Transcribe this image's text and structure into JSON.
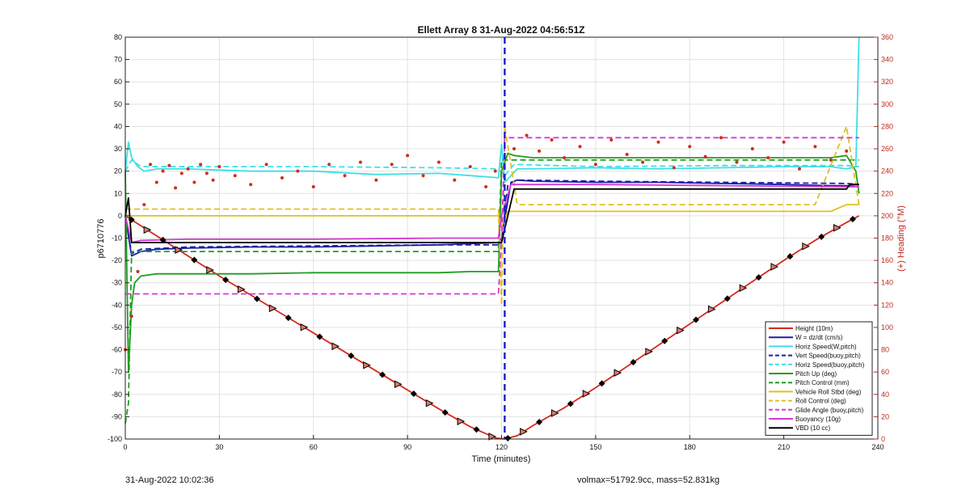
{
  "chart_data": {
    "type": "line",
    "title": "Ellett Array 8 31-Aug-2022 04:56:51Z",
    "xlabel": "Time (minutes)",
    "ylabel": "p6710776",
    "ylabel_right": "(+) Heading (°M)",
    "xlim": [
      0,
      240
    ],
    "ylim": [
      -100,
      80
    ],
    "ylim_right": [
      0,
      360
    ],
    "x_ticks": [
      0,
      30,
      60,
      90,
      120,
      150,
      180,
      210,
      240
    ],
    "y_ticks": [
      -100,
      -90,
      -80,
      -70,
      -60,
      -50,
      -40,
      -30,
      -20,
      -10,
      0,
      10,
      20,
      30,
      40,
      50,
      60,
      70,
      80
    ],
    "y_ticks_right": [
      0,
      20,
      40,
      60,
      80,
      100,
      120,
      140,
      160,
      180,
      200,
      220,
      240,
      260,
      280,
      300,
      320,
      340,
      360
    ],
    "grid": true,
    "legend_position": "bottom-right",
    "apogee_marker_x": 121,
    "series": [
      {
        "name": "Height (10m)",
        "color": "#d42a1c",
        "style": "solid",
        "x": [
          0,
          10,
          20,
          30,
          40,
          50,
          60,
          70,
          80,
          90,
          100,
          110,
          118,
          121,
          125,
          130,
          140,
          150,
          160,
          170,
          180,
          190,
          200,
          210,
          220,
          230,
          234
        ],
        "y": [
          0,
          -9,
          -18,
          -27,
          -35.5,
          -44,
          -52.5,
          -61,
          -69.5,
          -78,
          -86.5,
          -94.5,
          -99.5,
          -100,
          -98.5,
          -94,
          -86,
          -77,
          -67.5,
          -58,
          -48.5,
          -39,
          -29.5,
          -20,
          -11,
          -3,
          0
        ]
      },
      {
        "name": "W = dz/dt (cm/s)",
        "color": "#1b1fa8",
        "style": "solid",
        "x": [
          0,
          2,
          5,
          10,
          20,
          40,
          60,
          80,
          100,
          110,
          119,
          120,
          123,
          125,
          130,
          150,
          170,
          190,
          210,
          225,
          230,
          234
        ],
        "y": [
          0,
          -18,
          -16,
          -15,
          -14.5,
          -14,
          -14,
          -13.5,
          -13,
          -12.5,
          -12,
          -10,
          15,
          16,
          15.5,
          15,
          15,
          14.5,
          14,
          13.5,
          13.5,
          13
        ]
      },
      {
        "name": "Horiz Speed(W,pitch)",
        "color": "#3de0e6",
        "style": "solid",
        "x": [
          0,
          1,
          2,
          4,
          6,
          10,
          20,
          40,
          60,
          80,
          100,
          110,
          119,
          120,
          121,
          123,
          125,
          130,
          150,
          170,
          190,
          210,
          225,
          230,
          233,
          234
        ],
        "y": [
          20,
          33,
          26,
          22,
          20,
          21,
          21,
          20,
          20,
          18.5,
          19,
          18,
          17,
          32,
          15,
          18,
          21,
          21,
          21.5,
          21,
          21.5,
          22,
          22,
          21,
          22,
          80
        ]
      },
      {
        "name": "Vert Speed(buoy,pitch)",
        "color": "#1b1fa8",
        "style": "dashed",
        "x": [
          0,
          2,
          5,
          20,
          60,
          100,
          119,
          120,
          122,
          125,
          150,
          190,
          230,
          234
        ],
        "y": [
          0,
          -17,
          -15,
          -14,
          -13.5,
          -13,
          -13,
          -12,
          14,
          16,
          15.5,
          15,
          14.5,
          14
        ]
      },
      {
        "name": "Horiz Speed(buoy,pitch)",
        "color": "#3de0e6",
        "style": "dashed",
        "x": [
          0,
          2,
          5,
          20,
          60,
          100,
          119,
          121,
          124,
          150,
          190,
          230,
          234
        ],
        "y": [
          20,
          25,
          22,
          22,
          22,
          21.5,
          21,
          18,
          23,
          22,
          22.5,
          22.5,
          22
        ]
      },
      {
        "name": "Pitch Up (deg)",
        "color": "#1f9e1f",
        "style": "solid",
        "x": [
          0,
          1,
          2,
          3,
          5,
          10,
          20,
          40,
          60,
          80,
          100,
          110,
          119,
          120,
          122,
          124,
          130,
          150,
          170,
          190,
          210,
          225,
          230,
          233,
          234
        ],
        "y": [
          20,
          -70,
          -40,
          -30,
          -27,
          -26,
          -26,
          -26,
          -25.5,
          -25.5,
          -25.5,
          -25,
          -25,
          20,
          28,
          27,
          26,
          26,
          26,
          26,
          26,
          26,
          27,
          20,
          10
        ]
      },
      {
        "name": "Pitch Control (mm)",
        "color": "#1f9e1f",
        "style": "dashed",
        "x": [
          0,
          1,
          2,
          4,
          119,
          120,
          121,
          234
        ],
        "y": [
          -93,
          -84,
          -16,
          -16,
          -16,
          25,
          25,
          25
        ]
      },
      {
        "name": "Vehicle Roll Stbd (deg)",
        "color": "#e0c020",
        "style": "solid",
        "x": [
          0,
          5,
          10,
          20,
          40,
          60,
          80,
          100,
          119,
          120,
          122,
          124,
          130,
          150,
          170,
          190,
          210,
          225,
          230,
          234
        ],
        "y": [
          0,
          0,
          0,
          0,
          0,
          0,
          0,
          0,
          0,
          -5,
          2,
          2,
          2,
          2,
          2,
          2,
          2,
          2,
          5,
          5
        ]
      },
      {
        "name": "Roll Control (deg)",
        "color": "#e0c020",
        "style": "dashed",
        "x": [
          0,
          5,
          10,
          20,
          40,
          60,
          80,
          100,
          119,
          120,
          121,
          125,
          130,
          150,
          170,
          190,
          210,
          220,
          230,
          234
        ],
        "y": [
          3,
          3,
          3,
          3,
          3,
          3,
          3,
          3,
          3,
          -40,
          40,
          5,
          5,
          5,
          5,
          5,
          5,
          5,
          40,
          5
        ]
      },
      {
        "name": "Glide Angle (buoy,pitch)",
        "color": "#d43ad4",
        "style": "dashed",
        "x": [
          0,
          3,
          10,
          40,
          80,
          119,
          120,
          121,
          125,
          160,
          200,
          234
        ],
        "y": [
          -35,
          -35,
          -35,
          -35,
          -35,
          -35,
          -10,
          35,
          35,
          35,
          35,
          35
        ]
      },
      {
        "name": "Buoyancy (10g)",
        "color": "#d43ad4",
        "style": "solid",
        "x": [
          0,
          2,
          5,
          20,
          60,
          100,
          119,
          120,
          123,
          150,
          190,
          230,
          234
        ],
        "y": [
          0,
          -12,
          -11,
          -10.5,
          -10.5,
          -10,
          -10,
          0,
          14,
          14,
          13.5,
          13,
          13
        ]
      },
      {
        "name": "VBD (10 cc)",
        "color": "#000000",
        "style": "solid",
        "x": [
          0,
          1,
          2,
          119,
          120,
          124,
          230,
          231,
          234
        ],
        "y": [
          0,
          8,
          -12,
          -12,
          -12,
          12,
          12,
          14,
          14
        ]
      }
    ],
    "heading_scatter": {
      "name": "Heading",
      "color": "#d42a1c",
      "axis": "right",
      "x": [
        0,
        2,
        4,
        6,
        8,
        10,
        12,
        14,
        16,
        18,
        20,
        22,
        24,
        26,
        28,
        30,
        35,
        40,
        45,
        50,
        55,
        60,
        65,
        70,
        75,
        80,
        85,
        90,
        95,
        100,
        105,
        110,
        115,
        118,
        124,
        128,
        132,
        136,
        140,
        145,
        150,
        155,
        160,
        165,
        170,
        175,
        180,
        185,
        190,
        195,
        200,
        205,
        210,
        215,
        220,
        225,
        230
      ],
      "y": [
        80,
        110,
        150,
        210,
        246,
        230,
        240,
        245,
        225,
        238,
        242,
        230,
        246,
        238,
        232,
        244,
        236,
        228,
        246,
        234,
        240,
        226,
        246,
        236,
        248,
        232,
        246,
        254,
        236,
        248,
        232,
        244,
        226,
        240,
        260,
        272,
        258,
        268,
        252,
        262,
        246,
        268,
        255,
        248,
        266,
        243,
        262,
        253,
        270,
        248,
        260,
        252,
        266,
        242,
        262,
        250,
        258
      ]
    }
  },
  "footer": {
    "left": "31-Aug-2022 10:02:36",
    "right": "volmax=51792.9cc, mass=52.831kg"
  }
}
